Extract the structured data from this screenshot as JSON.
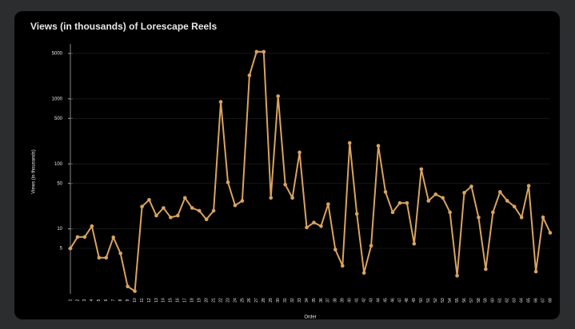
{
  "chart_data": {
    "type": "line",
    "title": "Views (in thousands) of Lorescape Reels",
    "xlabel": "Order",
    "ylabel": "Views (in thousands)",
    "categories": [
      1,
      2,
      3,
      4,
      5,
      6,
      7,
      8,
      9,
      10,
      11,
      12,
      13,
      14,
      15,
      16,
      17,
      18,
      19,
      20,
      21,
      22,
      23,
      24,
      25,
      26,
      27,
      28,
      29,
      30,
      31,
      32,
      33,
      34,
      35,
      36,
      37,
      38,
      39,
      40,
      41,
      42,
      43,
      44,
      45,
      46,
      47,
      48,
      49,
      50,
      51,
      52,
      53,
      54,
      55,
      56,
      57,
      58,
      59,
      60,
      61,
      62,
      63,
      64,
      65,
      66,
      67,
      68
    ],
    "series": [
      {
        "name": "Views",
        "color": "#d9a35f",
        "values": [
          5,
          7.5,
          7.5,
          11,
          3.6,
          3.6,
          7.4,
          4.2,
          1.3,
          1.1,
          22,
          28,
          16,
          21,
          15,
          16,
          30,
          21,
          19,
          14,
          19,
          900,
          52,
          23,
          27,
          2300,
          5300,
          5300,
          30,
          1100,
          48,
          30,
          150,
          10.5,
          12.5,
          11,
          24,
          4.8,
          2.7,
          210,
          17,
          2.1,
          5.5,
          190,
          37,
          18,
          25,
          25,
          5.9,
          83,
          27,
          34,
          30,
          18,
          1.9,
          36,
          45,
          15,
          2.4,
          18,
          37,
          27,
          22,
          15,
          46,
          2.2,
          15,
          8.7
        ]
      }
    ],
    "ylim": [
      1,
      7000
    ],
    "yticks": [
      5,
      10,
      50,
      100,
      500,
      1000,
      5000
    ],
    "log_y": true,
    "grid": true
  }
}
